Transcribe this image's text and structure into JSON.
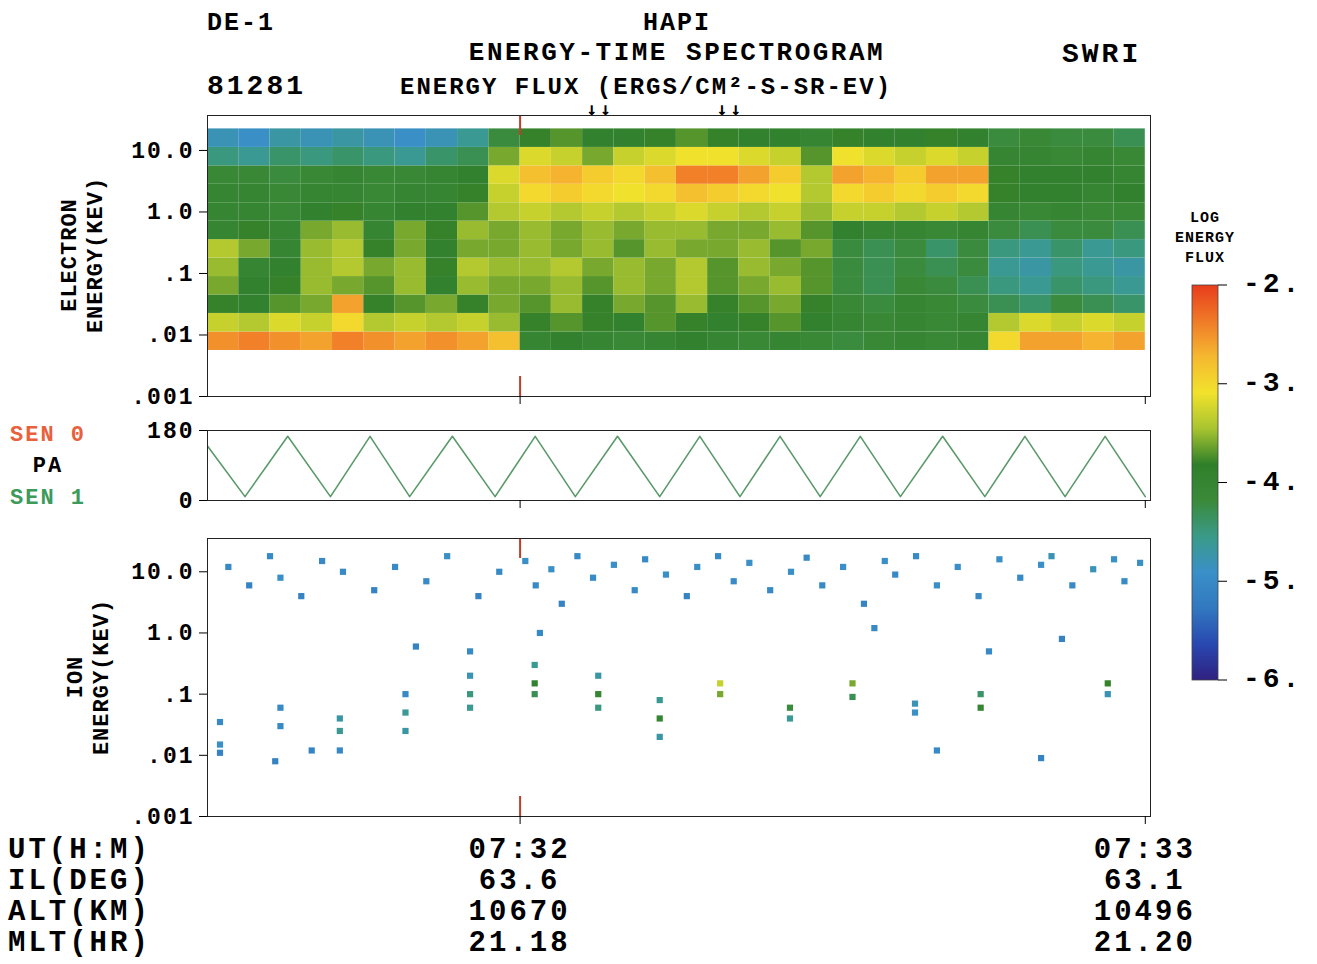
{
  "chart_data": {
    "type": "spectrogram",
    "title": "ENERGY-TIME SPECTROGRAM",
    "spacecraft": "DE-1",
    "instrument": "HAPI",
    "institution": "SWRI",
    "date": "81281",
    "subtitle": "ENERGY FLUX (ERGS/CM²-S-SR-EV)",
    "xlim": [
      -30,
      60.5
    ],
    "xticks": [
      {
        "value": 0,
        "label": "07:32"
      },
      {
        "value": 60,
        "label": "07:33"
      }
    ],
    "x_label": "UT(H:M)",
    "ephemeris": [
      {
        "label": "IL(DEG)",
        "values": [
          63.6,
          63.1
        ]
      },
      {
        "label": "ALT(KM)",
        "values": [
          10670,
          10496
        ]
      },
      {
        "label": "MLT(HR)",
        "values": [
          21.18,
          {
            "value": 21.2,
            "label": "21.20"
          }
        ]
      }
    ],
    "colorbar": {
      "label": "LOG ENERGY FLUX",
      "range": [
        -6,
        -2
      ],
      "ticks": [
        {
          "value": -2,
          "label": "-2."
        },
        {
          "value": -3,
          "label": "-3."
        },
        {
          "value": -4,
          "label": "-4."
        },
        {
          "value": -5,
          "label": "-5."
        },
        {
          "value": -6,
          "label": "-6."
        }
      ],
      "colors": [
        "#302080",
        "#2848b0",
        "#3278c0",
        "#3a90c8",
        "#3a9a88",
        "#3a8a3a",
        "#2f7f2a",
        "#a8c430",
        "#f2e22c",
        "#f5b830",
        "#f07a28",
        "#e83c1c"
      ]
    },
    "panels": [
      {
        "type": "heatmap",
        "y_label": "ELECTRON ENERGY(KEV)",
        "log": "y",
        "ylim": [
          0.001,
          37
        ],
        "yticks": [
          {
            "value": 10,
            "label": "10.0"
          },
          {
            "value": 1,
            "label": "1.0"
          },
          {
            "value": 0.1,
            "label": ".1"
          },
          {
            "value": 0.01,
            "label": ".01"
          },
          {
            "value": 0.001,
            "label": ".001"
          }
        ],
        "time_edges": [
          -30,
          -27,
          -24,
          -21,
          -18,
          -15,
          -12,
          -9,
          -6,
          -3,
          0,
          3,
          6,
          9,
          12,
          15,
          18,
          21,
          24,
          27,
          30,
          33,
          36,
          39,
          42,
          45,
          48,
          51,
          54,
          57,
          60
        ],
        "energy_edges": [
          0.0056,
          0.0112,
          0.0224,
          0.0447,
          0.0891,
          0.178,
          0.355,
          0.708,
          1.41,
          2.82,
          5.62,
          11.2,
          22.4
        ],
        "log_flux": [
          [
            -2.5,
            -2.4,
            -2.5,
            -2.6,
            -2.4,
            -2.5,
            -2.6,
            -2.5,
            -2.6,
            -2.8,
            -4.0,
            -3.9,
            -4.0,
            -4.1,
            -4.0,
            -3.9,
            -4.0,
            -4.1,
            -4.0,
            -4.1,
            -4.2,
            -4.1,
            -4.0,
            -4.1,
            -4.0,
            -3.0,
            -2.6,
            -2.6,
            -2.7,
            -2.6
          ],
          [
            -3.3,
            -3.4,
            -3.2,
            -3.3,
            -3.0,
            -3.4,
            -3.3,
            -3.4,
            -3.3,
            -3.5,
            -3.8,
            -3.7,
            -3.8,
            -3.9,
            -3.7,
            -3.8,
            -3.9,
            -3.8,
            -3.7,
            -3.9,
            -4.0,
            -4.1,
            -4.0,
            -4.1,
            -4.0,
            -3.4,
            -3.2,
            -3.3,
            -3.2,
            -3.3
          ],
          [
            -3.8,
            -3.9,
            -3.7,
            -3.6,
            -2.6,
            -3.8,
            -3.7,
            -3.6,
            -3.8,
            -3.6,
            -3.7,
            -3.5,
            -3.8,
            -3.6,
            -3.7,
            -3.5,
            -3.8,
            -3.7,
            -3.6,
            -3.8,
            -4.1,
            -4.2,
            -4.0,
            -4.1,
            -4.2,
            -4.3,
            -4.4,
            -4.2,
            -4.3,
            -4.4
          ],
          [
            -3.6,
            -3.9,
            -3.8,
            -3.5,
            -3.6,
            -3.7,
            -3.5,
            -3.9,
            -3.5,
            -3.6,
            -3.6,
            -3.5,
            -3.7,
            -3.5,
            -3.6,
            -3.4,
            -3.7,
            -3.6,
            -3.5,
            -3.7,
            -4.2,
            -4.3,
            -4.1,
            -4.2,
            -4.3,
            -4.5,
            -4.6,
            -4.4,
            -4.5,
            -4.6
          ],
          [
            -3.5,
            -4.0,
            -3.9,
            -3.5,
            -3.4,
            -3.6,
            -3.5,
            -3.8,
            -3.4,
            -3.5,
            -3.5,
            -3.4,
            -3.6,
            -3.5,
            -3.6,
            -3.4,
            -3.7,
            -3.5,
            -3.6,
            -3.7,
            -4.2,
            -4.3,
            -4.2,
            -4.3,
            -4.2,
            -4.6,
            -4.7,
            -4.5,
            -4.6,
            -4.7
          ],
          [
            -3.4,
            -3.6,
            -4.0,
            -3.5,
            -3.4,
            -3.8,
            -3.6,
            -3.9,
            -3.6,
            -3.6,
            -3.5,
            -3.6,
            -3.5,
            -3.7,
            -3.5,
            -3.6,
            -3.6,
            -3.5,
            -3.7,
            -3.6,
            -4.2,
            -4.3,
            -4.2,
            -4.4,
            -4.2,
            -4.5,
            -4.6,
            -4.4,
            -4.6,
            -4.5
          ],
          [
            -4.0,
            -3.8,
            -4.0,
            -3.6,
            -3.5,
            -4.0,
            -3.6,
            -3.8,
            -3.5,
            -3.6,
            -3.5,
            -3.6,
            -3.5,
            -3.6,
            -3.5,
            -3.5,
            -3.6,
            -3.6,
            -3.5,
            -3.7,
            -3.9,
            -4.0,
            -4.0,
            -4.1,
            -4.0,
            -4.2,
            -4.3,
            -4.2,
            -4.2,
            -4.3
          ],
          [
            -4.0,
            -4.0,
            -4.1,
            -3.9,
            -3.8,
            -4.0,
            -3.9,
            -3.9,
            -3.7,
            -3.4,
            -3.3,
            -3.4,
            -3.3,
            -3.4,
            -3.3,
            -3.2,
            -3.3,
            -3.4,
            -3.3,
            -3.5,
            -3.3,
            -3.3,
            -3.4,
            -3.3,
            -3.4,
            -4.0,
            -4.1,
            -4.0,
            -4.1,
            -4.1
          ],
          [
            -4.0,
            -4.0,
            -4.1,
            -4.0,
            -4.0,
            -4.1,
            -4.0,
            -4.0,
            -3.8,
            -3.3,
            -3.0,
            -2.9,
            -3.0,
            -3.1,
            -3.0,
            -2.8,
            -2.9,
            -3.0,
            -3.1,
            -3.4,
            -3.0,
            -2.9,
            -3.0,
            -2.9,
            -3.0,
            -3.8,
            -3.9,
            -3.9,
            -4.0,
            -3.9
          ],
          [
            -4.1,
            -4.1,
            -4.2,
            -4.1,
            -4.0,
            -4.1,
            -4.1,
            -4.0,
            -3.9,
            -3.2,
            -2.8,
            -2.7,
            -2.9,
            -3.0,
            -2.8,
            -2.4,
            -2.4,
            -2.6,
            -2.9,
            -3.4,
            -2.6,
            -2.7,
            -2.9,
            -2.6,
            -2.6,
            -3.8,
            -3.9,
            -3.9,
            -3.9,
            -4.0
          ],
          [
            -4.5,
            -4.6,
            -4.4,
            -4.5,
            -4.4,
            -4.5,
            -4.6,
            -4.4,
            -4.3,
            -3.6,
            -3.2,
            -3.3,
            -3.6,
            -3.3,
            -3.2,
            -3.1,
            -3.1,
            -3.2,
            -3.3,
            -3.7,
            -3.1,
            -3.2,
            -3.3,
            -3.2,
            -3.3,
            -4.0,
            -4.0,
            -4.1,
            -4.0,
            -4.1
          ],
          [
            -4.8,
            -4.9,
            -4.7,
            -4.8,
            -4.7,
            -4.8,
            -4.9,
            -4.8,
            -4.6,
            -4.2,
            -3.8,
            -3.7,
            -3.9,
            -3.9,
            -3.8,
            -3.7,
            -3.8,
            -3.9,
            -3.9,
            -4.0,
            -3.8,
            -3.9,
            -3.9,
            -3.8,
            -3.9,
            -4.2,
            -4.1,
            -4.2,
            -4.2,
            -4.3
          ]
        ],
        "time_marker": {
          "value": 0,
          "color": "#c83a28"
        },
        "arrows": {
          "symbol": "↓",
          "times": [
            7.0,
            8.3,
            19.5,
            20.8
          ]
        }
      },
      {
        "type": "line",
        "y_label": "PA",
        "labels": [
          {
            "text": "SEN 0",
            "color": "#e8603c"
          },
          {
            "text": "SEN 1",
            "color": "#3c9a5a"
          }
        ],
        "ylim": [
          0,
          180
        ],
        "yticks": [
          0,
          180
        ],
        "x": [
          -30,
          -26.4,
          -22.3,
          -18.2,
          -14.4,
          -10.6,
          -6.5,
          -2.4,
          1.45,
          5.3,
          9.35,
          13.4,
          17.25,
          21.1,
          24.95,
          28.8,
          32.65,
          36.5,
          40.55,
          44.6,
          48.45,
          52.3,
          56.15,
          60
        ],
        "values": [
          140,
          10,
          165,
          10,
          165,
          10,
          165,
          10,
          165,
          10,
          165,
          10,
          165,
          10,
          165,
          10,
          165,
          10,
          165,
          10,
          165,
          10,
          165,
          10
        ],
        "color": "#5a9a6a"
      },
      {
        "type": "scatter",
        "y_label": "ION ENERGY(KEV)",
        "log": "y",
        "ylim": [
          0.001,
          35
        ],
        "yticks": [
          {
            "value": 10,
            "label": "10.0"
          },
          {
            "value": 1,
            "label": "1.0"
          },
          {
            "value": 0.1,
            "label": ".1"
          },
          {
            "value": 0.01,
            "label": ".01"
          },
          {
            "value": 0.001,
            "label": ".001"
          }
        ],
        "marker": "square",
        "points": [
          [
            -28.8,
            0.035,
            -5.0
          ],
          [
            -28.8,
            0.015,
            -4.9
          ],
          [
            -28.8,
            0.011,
            -5.1
          ],
          [
            -23.0,
            0.06,
            -5.0
          ],
          [
            -23.0,
            0.03,
            -5.0
          ],
          [
            -23.5,
            0.008,
            -5.1
          ],
          [
            -17.3,
            0.04,
            -4.7
          ],
          [
            -17.3,
            0.025,
            -4.6
          ],
          [
            -17.3,
            0.012,
            -5.0
          ],
          [
            -11.0,
            0.1,
            -5.0
          ],
          [
            -11.0,
            0.05,
            -4.6
          ],
          [
            -11.0,
            0.025,
            -4.7
          ],
          [
            -4.8,
            0.5,
            -5.0
          ],
          [
            -4.8,
            0.2,
            -4.8
          ],
          [
            -4.8,
            0.1,
            -4.5
          ],
          [
            -4.8,
            0.06,
            -4.6
          ],
          [
            1.4,
            0.3,
            -4.6
          ],
          [
            1.4,
            0.15,
            -3.9
          ],
          [
            1.4,
            0.1,
            -4.3
          ],
          [
            1.9,
            1.0,
            -5.0
          ],
          [
            7.5,
            0.2,
            -4.7
          ],
          [
            7.5,
            0.1,
            -4.0
          ],
          [
            7.5,
            0.06,
            -4.5
          ],
          [
            13.4,
            0.08,
            -4.6
          ],
          [
            13.4,
            0.04,
            -4.0
          ],
          [
            13.4,
            0.02,
            -4.7
          ],
          [
            19.2,
            0.15,
            -3.3
          ],
          [
            19.2,
            0.1,
            -3.6
          ],
          [
            25.9,
            0.06,
            -4.2
          ],
          [
            25.9,
            0.04,
            -4.6
          ],
          [
            31.9,
            0.15,
            -3.6
          ],
          [
            31.9,
            0.09,
            -4.3
          ],
          [
            37.9,
            0.07,
            -4.8
          ],
          [
            37.9,
            0.05,
            -4.9
          ],
          [
            44.2,
            0.1,
            -4.4
          ],
          [
            44.2,
            0.06,
            -4.0
          ],
          [
            56.4,
            0.15,
            -3.8
          ],
          [
            56.4,
            0.1,
            -4.8
          ],
          [
            -28,
            12,
            -5.0
          ],
          [
            -26,
            6,
            -5.1
          ],
          [
            -24,
            18,
            -5.0
          ],
          [
            -23,
            8,
            -4.9
          ],
          [
            -21,
            4,
            -5.1
          ],
          [
            -19,
            15,
            -5.0
          ],
          [
            -17,
            10,
            -5.0
          ],
          [
            -14,
            5,
            -5.1
          ],
          [
            -12,
            12,
            -5.0
          ],
          [
            -9,
            7,
            -5.0
          ],
          [
            -7,
            18,
            -4.9
          ],
          [
            -4,
            4,
            -5.1
          ],
          [
            -2,
            10,
            -5.0
          ],
          [
            0.5,
            15,
            -4.9
          ],
          [
            1.5,
            6,
            -5.0
          ],
          [
            3,
            11,
            -4.9
          ],
          [
            4,
            3,
            -5.1
          ],
          [
            5.5,
            18,
            -5.0
          ],
          [
            7,
            8,
            -5.0
          ],
          [
            9,
            13,
            -4.9
          ],
          [
            11,
            5,
            -5.0
          ],
          [
            12,
            16,
            -5.0
          ],
          [
            14,
            9,
            -4.9
          ],
          [
            16,
            4,
            -5.1
          ],
          [
            17,
            12,
            -4.9
          ],
          [
            19,
            18,
            -5.0
          ],
          [
            20.5,
            7,
            -5.0
          ],
          [
            22,
            14,
            -4.9
          ],
          [
            24,
            5,
            -5.0
          ],
          [
            26,
            10,
            -4.9
          ],
          [
            27.5,
            17,
            -5.0
          ],
          [
            29,
            6,
            -5.0
          ],
          [
            31,
            12,
            -4.9
          ],
          [
            33,
            3,
            -5.1
          ],
          [
            35,
            15,
            -4.9
          ],
          [
            36,
            9,
            -5.0
          ],
          [
            38,
            18,
            -5.0
          ],
          [
            40,
            6,
            -4.9
          ],
          [
            42,
            12,
            -4.9
          ],
          [
            44,
            4,
            -5.0
          ],
          [
            46,
            16,
            -4.9
          ],
          [
            48,
            8,
            -5.0
          ],
          [
            50,
            13,
            -4.9
          ],
          [
            51,
            18,
            -4.8
          ],
          [
            53,
            6,
            -5.0
          ],
          [
            55,
            11,
            -4.8
          ],
          [
            57,
            16,
            -4.9
          ],
          [
            58,
            7,
            -5.0
          ],
          [
            59.5,
            14,
            -4.9
          ],
          [
            -10,
            0.6,
            -5.1
          ],
          [
            34,
            1.2,
            -5.0
          ],
          [
            45,
            0.5,
            -5.0
          ],
          [
            52,
            0.8,
            -5.1
          ],
          [
            -20,
            0.012,
            -5.1
          ],
          [
            40,
            0.012,
            -5.0
          ],
          [
            50,
            0.009,
            -5.1
          ]
        ],
        "time_marker": {
          "value": 0,
          "color": "#c83a28"
        }
      }
    ]
  }
}
